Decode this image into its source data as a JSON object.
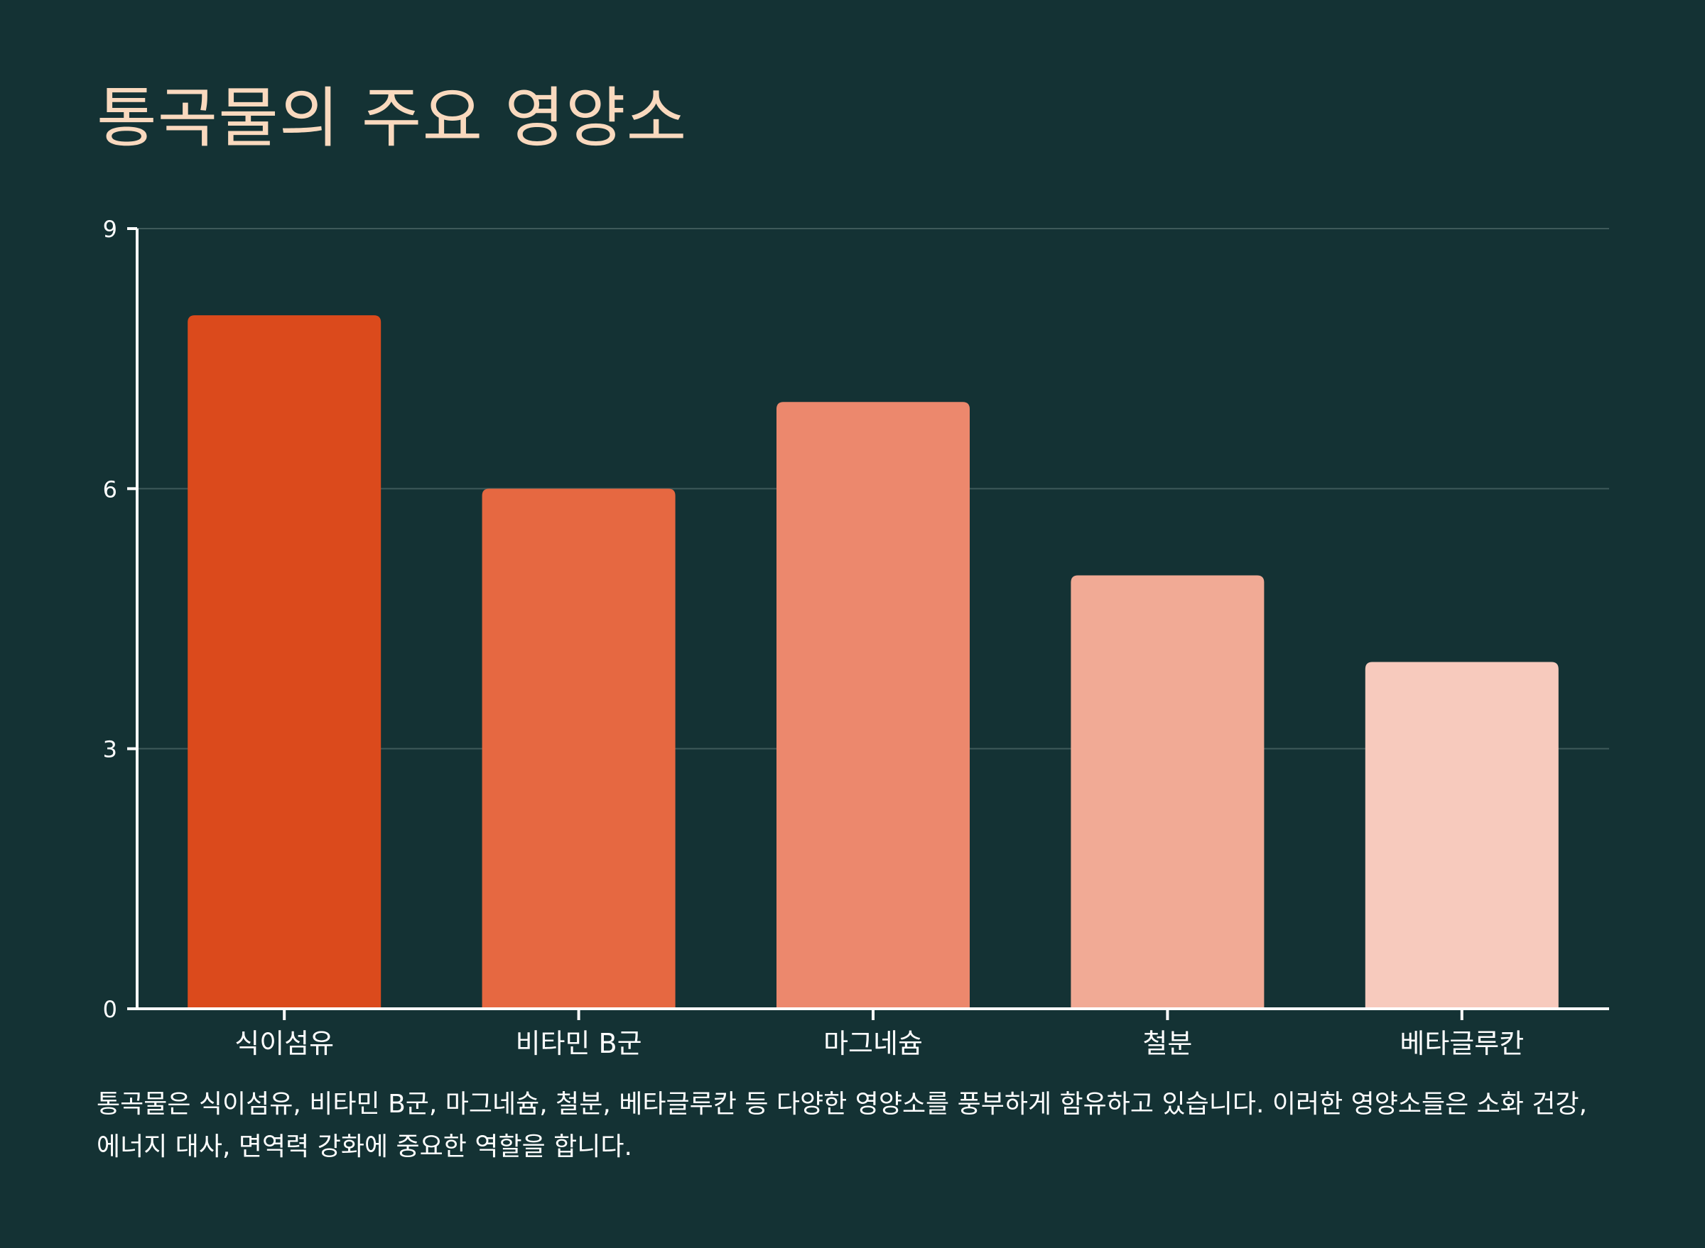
{
  "title": "통곡물의 주요 영양소",
  "description": "통곡물은 식이섬유, 비타민 B군, 마그네슘, 철분, 베타글루칸 등 다양한 영양소를 풍부하게 함유하고 있습니다. 이러한 영양소들은 소화 건강, 에너지 대사, 면역력 강화에 중요한 역할을 합니다.",
  "colors": {
    "background": "#143234",
    "title": "#F9D9BE",
    "axis": "#FFFFFF",
    "grid": "#3E5A5A",
    "text": "#FFFFFF"
  },
  "chart_data": {
    "type": "bar",
    "title": "",
    "xlabel": "",
    "ylabel": "",
    "categories": [
      "식이섬유",
      "비타민 B군",
      "마그네슘",
      "철분",
      "베타글루칸"
    ],
    "values": [
      8,
      6,
      7,
      5,
      4
    ],
    "bar_colors": [
      "#DB4A1C",
      "#E66841",
      "#EC886D",
      "#F1AA95",
      "#F7CABD"
    ],
    "ylim": [
      0,
      9
    ],
    "yticks": [
      0,
      3,
      6,
      9
    ],
    "grid": true,
    "legend": "none"
  }
}
